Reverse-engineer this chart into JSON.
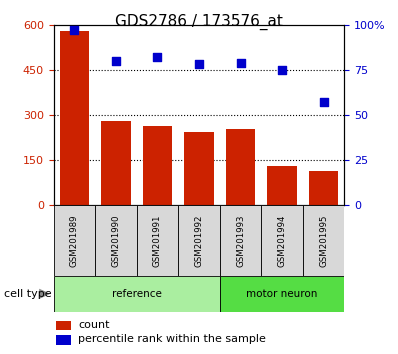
{
  "title": "GDS2786 / 173576_at",
  "categories": [
    "GSM201989",
    "GSM201990",
    "GSM201991",
    "GSM201992",
    "GSM201993",
    "GSM201994",
    "GSM201995"
  ],
  "bar_values": [
    580,
    280,
    265,
    245,
    255,
    130,
    115
  ],
  "percentile_values": [
    97,
    80,
    82,
    78,
    79,
    75,
    57
  ],
  "bar_color": "#cc2200",
  "dot_color": "#0000cc",
  "ylim_left": [
    0,
    600
  ],
  "ylim_right": [
    0,
    100
  ],
  "yticks_left": [
    0,
    150,
    300,
    450,
    600
  ],
  "yticks_right": [
    0,
    25,
    50,
    75,
    100
  ],
  "ytick_labels_right": [
    "0",
    "25",
    "50",
    "75",
    "100%"
  ],
  "groups": [
    {
      "label": "reference",
      "indices": [
        0,
        1,
        2,
        3
      ],
      "color": "#aaeea0"
    },
    {
      "label": "motor neuron",
      "indices": [
        4,
        5,
        6
      ],
      "color": "#55dd44"
    }
  ],
  "cell_type_label": "cell type",
  "legend_count_label": "count",
  "legend_percentile_label": "percentile rank within the sample",
  "tick_color_left": "#cc2200",
  "tick_color_right": "#0000cc",
  "bar_width": 0.7,
  "sample_cell_color": "#d8d8d8",
  "title_fontsize": 11,
  "axis_fontsize": 8,
  "legend_fontsize": 8
}
